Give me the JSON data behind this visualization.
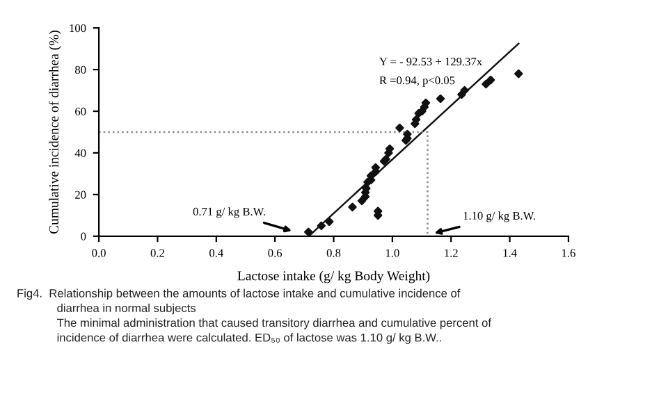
{
  "chart_data": {
    "type": "scatter",
    "xlabel": "Lactose intake (g/ kg Body Weight)",
    "ylabel": "Cumulative incidence of diarrhea (%)",
    "xlim": [
      0,
      1.6
    ],
    "ylim": [
      0,
      100
    ],
    "xticks": [
      {
        "value": 0,
        "label": "0.0"
      },
      {
        "value": 0.2,
        "label": "0.2"
      },
      {
        "value": 0.4,
        "label": "0.4"
      },
      {
        "value": 0.6,
        "label": "0.6"
      },
      {
        "value": 0.8,
        "label": "0.8"
      },
      {
        "value": 1.0,
        "label": "1.0"
      },
      {
        "value": 1.2,
        "label": "1.2"
      },
      {
        "value": 1.4,
        "label": "1.4"
      },
      {
        "value": 1.6,
        "label": "1.6"
      }
    ],
    "yticks": [
      0,
      20,
      40,
      60,
      80,
      100
    ],
    "grid": false,
    "legend": false,
    "series": [
      {
        "color": "#111111",
        "marker": "diamond",
        "x": [
          0.714,
          0.758,
          0.785,
          0.864,
          0.896,
          0.908,
          0.908,
          0.911,
          0.916,
          0.927,
          0.927,
          0.943,
          0.943,
          0.951,
          0.951,
          0.972,
          0.978,
          0.987,
          0.991,
          1.025,
          1.046,
          1.051,
          1.051,
          1.077,
          1.081,
          1.09,
          1.101,
          1.109,
          1.114,
          1.164,
          1.236,
          1.246,
          1.319,
          1.335,
          1.43
        ],
        "values": [
          2,
          5,
          7,
          14,
          17,
          19,
          21,
          23,
          26,
          27,
          29,
          31,
          33,
          12,
          10,
          36,
          37,
          40,
          42,
          52,
          46,
          47,
          49,
          54,
          56,
          59,
          60,
          62,
          64,
          66,
          68,
          70,
          73,
          75,
          78
        ]
      },
      {
        "type": "line",
        "color": "#111111",
        "line_style": "solid",
        "x": [
          0.715,
          1.43
        ],
        "values": [
          0,
          92.5
        ]
      },
      {
        "type": "line",
        "color": "#888888",
        "line_style": "dotted",
        "x": [
          0,
          1.12,
          1.12
        ],
        "values": [
          50,
          50,
          0
        ]
      }
    ],
    "annotations": [
      "Y = - 92.53 + 129.37x",
      "R =0.94, p<0.05",
      "0.71 g/ kg B.W.",
      {
        "text": "1.10 g/ kg B.W.",
        "x": 1.13,
        "y": 1
      },
      "Fig4.  Relationship between the amounts of lactose intake and cumulative incidence of",
      "diarrhea in normal subjects",
      "The minimal administration that caused transitory diarrhea and cumulative percent of",
      "incidence of diarrhea were calculated. ED₅₀ of lactose was 1.10 g/ kg B.W.."
    ]
  }
}
